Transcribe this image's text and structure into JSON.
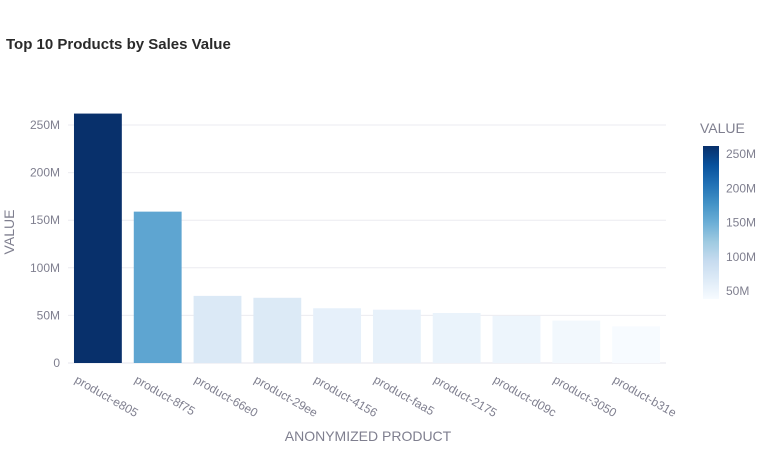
{
  "chart_data": {
    "type": "bar",
    "title": "Top 10 Products by Sales Value",
    "xlabel": "ANONYMIZED PRODUCT",
    "ylabel": "VALUE",
    "categories": [
      "product-e805",
      "product-8f75",
      "product-66e0",
      "product-29ee",
      "product-4156",
      "product-faa5",
      "product-2175",
      "product-d09c",
      "product-3050",
      "product-b31e"
    ],
    "values": [
      262000000,
      159000000,
      70500000,
      68500000,
      57500000,
      56000000,
      52500000,
      49500000,
      44500000,
      38500000
    ],
    "ylim": [
      0,
      270000000
    ],
    "yticks": [
      0,
      50000000,
      100000000,
      150000000,
      200000000,
      250000000
    ],
    "ytick_labels": [
      "0",
      "50M",
      "100M",
      "150M",
      "200M",
      "250M"
    ],
    "grid": true,
    "colorbar": {
      "title": "VALUE",
      "tick_values": [
        50000000,
        100000000,
        150000000,
        200000000,
        250000000
      ],
      "tick_labels": [
        "50M",
        "100M",
        "150M",
        "200M",
        "250M"
      ],
      "range": [
        38500000,
        262000000
      ],
      "colorscale": [
        "#f7fbff",
        "#deebf7",
        "#c6dbef",
        "#9ecae1",
        "#6baed6",
        "#4292c6",
        "#2171b5",
        "#08519c",
        "#08306b"
      ]
    }
  }
}
